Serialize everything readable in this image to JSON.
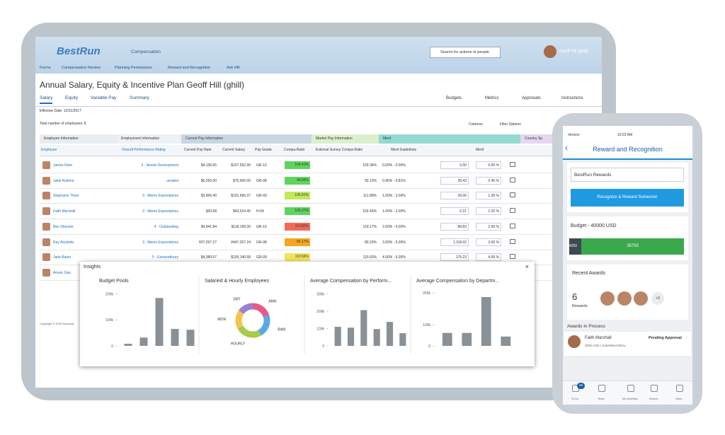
{
  "header": {
    "logo": "BestRun",
    "module": "Compensation",
    "search": "Search for actions or people",
    "user": "Geoff Hill (ghill)",
    "nav": [
      "Forms",
      "Compensation Review",
      "Planning Permissions",
      "Reward and Recognition",
      "Ask HR"
    ]
  },
  "page": {
    "title": "Annual Salary, Equity & Incentive Plan Geoff Hill (ghill)",
    "tabs": [
      "Salary",
      "Equity",
      "Variable Pay",
      "Summary"
    ],
    "actions": [
      "Budgets",
      "Metrics",
      "Approvals",
      "Instructions"
    ],
    "effective_date": "Effective Date: 12/31/2017",
    "total": "Total number of employees: 8",
    "tools": [
      "Columns",
      "Filter Options"
    ]
  },
  "table": {
    "groups": [
      "Employee Information",
      "Employment Information",
      "Current Pay Information",
      "Market Pay Information",
      "Merit",
      "Country Sp"
    ],
    "group_colors": [
      "#e9edf0",
      "#eef1f3",
      "#c9d6e2",
      "#dcefcc",
      "#93d9d0",
      "#e6d6f1"
    ],
    "headers": [
      "Employee",
      "Overall Performance Rating",
      "Current Pay Rate",
      "Current Salary",
      "Pay Grade",
      "Compa-Ratio",
      "External Survey Compa-Ratio",
      "Merit Guidelines",
      "Merit"
    ],
    "rows": [
      [
        "James Klein",
        "3 - Needs Development",
        "$4,136.65",
        "$107,552.90",
        "GR-10",
        "104.41%",
        "109.36%",
        "0.00% - 0.00%",
        "0.00",
        "0.00 %"
      ],
      [
        "Jakki Andrine",
        "unrated",
        "$6,250.00",
        "$75,000.00",
        "GR-08",
        "94.84%",
        "90.13%",
        "0.45% - 0.81%",
        "28.43",
        "0.45 %"
      ],
      [
        "Stephanie Thom",
        "3 - Meets Expectations",
        "$3,906.40",
        "$101,566.37",
        "GR-09",
        "106.81%",
        "111.89%",
        "1.00% - 3.00%",
        "39.06",
        "1.00 %"
      ],
      [
        "Faith Marshall",
        "3 - Meets Expectations",
        "$20.68",
        "$43,014.40",
        "H-04",
        "100.27%",
        "102.43%",
        "1.00% - 3.00%",
        "0.21",
        "1.02 %"
      ],
      [
        "Ben Sherwin",
        "4 - Outstanding",
        "$4,941.84",
        "$118,199.36",
        "GR-10",
        "110.80%",
        "118.17%",
        "2.00% - 4.00%",
        "98.83",
        "2.00 %"
      ],
      [
        "Ray Alcahide",
        "3 - Meets Expectations",
        "¥37,267.27",
        "¥447,207.24",
        "GR-08",
        "85.17%",
        "89.23%",
        "3.00% - 5.00%",
        "1,118.02",
        "3.00 %"
      ],
      [
        "Jada Baker",
        "5 - Extraordinary",
        "$4,380.67",
        "$105,140.58",
        "GR-09",
        "110.56%",
        "115.63%",
        "4.00% - 6.00%",
        "175.23",
        "4.00 %"
      ],
      [
        "Anson Gao"
      ]
    ],
    "compa_colors": [
      "#5fd35f",
      "#5fd35f",
      "#c4e85b",
      "#5fd35f",
      "#f26a55",
      "#f5a623",
      "#f2e35a"
    ]
  },
  "footer": {
    "copyright": "Copyright © 2016 Successf"
  },
  "insights": {
    "title": "Insights",
    "charts": [
      {
        "type": "bar",
        "title": "Budget Pools",
        "ylim": [
          0,
          220000
        ],
        "yticks": [
          0,
          {
            "value": 100000,
            "label": "100k"
          },
          {
            "value": 200000,
            "label": "200k"
          }
        ],
        "values": [
          8000,
          32000,
          184000,
          65000,
          62000
        ],
        "color": "#8a9196"
      },
      {
        "type": "donut",
        "title": "Salaried & Hourly Employees",
        "labels": [
          "AMN",
          "BWK",
          "HOURLY",
          "MON",
          "SMT"
        ],
        "values": [
          20,
          22,
          25,
          18,
          15
        ],
        "colors": [
          "#e85a8a",
          "#5aa9e6",
          "#a6cc4a",
          "#f2c44d",
          "#9b7fd1"
        ]
      },
      {
        "type": "bar",
        "title": "Average Compensation by Perform...",
        "ylim": [
          0,
          330000
        ],
        "yticks": [
          0,
          {
            "value": 100000,
            "label": "100k"
          },
          {
            "value": 200000,
            "label": "200k"
          },
          {
            "value": 300000,
            "label": "300k"
          }
        ],
        "values": [
          110000,
          105000,
          206000,
          97000,
          138000,
          73000
        ],
        "color": "#8a9196"
      },
      {
        "type": "bar",
        "title": "Average Compensation by Departm...",
        "ylim": [
          0,
          270000
        ],
        "yticks": [
          0,
          {
            "value": 100000,
            "label": "100k"
          },
          {
            "value": 250000,
            "label": "250k"
          }
        ],
        "values": [
          61000,
          61000,
          230000,
          44000
        ],
        "color": "#8a9196"
      }
    ]
  },
  "phone": {
    "carrier": "Verizon",
    "time": "10:22 AM",
    "title": "Reward and Recognition",
    "dropdown": "BestRun Rewards",
    "button": "Recognize & Reward Someone!",
    "budget": "Budget - 40000 USD",
    "budget_total": 40000,
    "budget_used": 4250,
    "budget_left": 35750,
    "recent": "Recent Awards",
    "count": 6,
    "count_label": "Rewards",
    "more": "+3",
    "in_process": "Awards in Process",
    "award_name": "Faith Marshall",
    "award_status": "Pending Approval",
    "award_detail": "3000 USD | Submitted 06/Ju...",
    "badge": "25",
    "tabs": [
      "To Do",
      "Team",
      "My Activities",
      "Search",
      "More"
    ]
  }
}
